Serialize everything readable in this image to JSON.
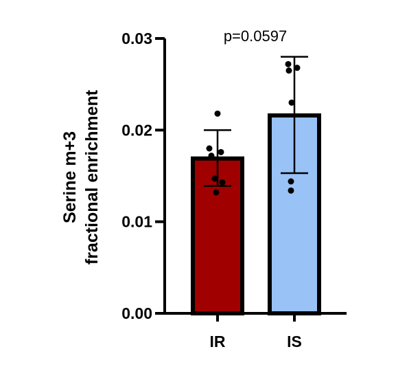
{
  "chart_data": {
    "type": "bar",
    "categories": [
      "IR",
      "IS"
    ],
    "values": [
      0.0169,
      0.0216
    ],
    "error_lower": [
      0.0139,
      0.0153
    ],
    "error_upper": [
      0.02,
      0.028
    ],
    "points": [
      [
        0.0218,
        0.018,
        0.0176,
        0.0172,
        0.0147,
        0.0143,
        0.0132
      ],
      [
        0.0272,
        0.0268,
        0.0265,
        0.023,
        0.0144,
        0.0134
      ]
    ],
    "colors": [
      "#a10000",
      "#99c2f7"
    ],
    "ylabel_line1": "Serine m+3",
    "ylabel_line2": "fractional enrichment",
    "yticks": [
      "0.00",
      "0.01",
      "0.02",
      "0.03"
    ],
    "ylim": [
      0,
      0.03
    ],
    "annotation": "p=0.0597",
    "grid": false
  }
}
